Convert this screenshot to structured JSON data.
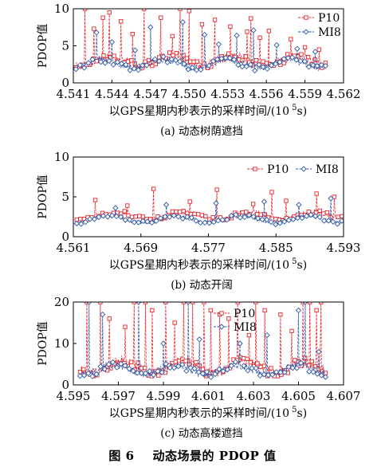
{
  "figure_caption": "图 6    动态场景的 PDOP 值",
  "colors": {
    "P10": "#e8232a",
    "MI8": "#2f5aa8",
    "axis": "#000000"
  },
  "chart_data": [
    {
      "type": "line",
      "subplot_label": "(a) 动态树荫遮挡",
      "xlabel_main": "以GPS星期内秒表示的采样时间/(10",
      "xlabel_exp": "5",
      "xlabel_tail": "s)",
      "ylabel": "PDOP值",
      "xlim": [
        4.541,
        4.562
      ],
      "ylim": [
        0,
        10
      ],
      "xticks": [
        "4.541",
        "4.544",
        "4.547",
        "4.550",
        "4.553",
        "4.556",
        "4.559",
        "4.562"
      ],
      "xtick_values": [
        4.541,
        4.544,
        4.547,
        4.55,
        4.553,
        4.556,
        4.559,
        4.562
      ],
      "yticks": [
        "0",
        "5",
        "10"
      ],
      "ytick_values": [
        0,
        5,
        10
      ],
      "legend_position": "top-right",
      "series": [
        {
          "name": "P10",
          "x_range": [
            4.5412,
            4.5606
          ],
          "baseline": [
            2.2,
            3.4
          ],
          "noise": 1.2,
          "spikes": [
            [
              4.5419,
              10.0
            ],
            [
              4.5426,
              7.3
            ],
            [
              4.5433,
              8.8
            ],
            [
              4.5438,
              9.5
            ],
            [
              4.5447,
              8.3
            ],
            [
              4.5456,
              6.6
            ],
            [
              4.5465,
              10.0
            ],
            [
              4.5478,
              8.8
            ],
            [
              4.5487,
              6.3
            ],
            [
              4.5493,
              10.0
            ],
            [
              4.55,
              9.7
            ],
            [
              4.551,
              7.9
            ],
            [
              4.552,
              8.5
            ],
            [
              4.5532,
              7.6
            ],
            [
              4.5545,
              6.9
            ],
            [
              4.5548,
              8.7
            ],
            [
              4.5555,
              6.1
            ],
            [
              4.5562,
              7.0
            ],
            [
              4.5579,
              5.9
            ],
            [
              4.559,
              4.8
            ],
            [
              4.5601,
              4.5
            ]
          ]
        },
        {
          "name": "MI8",
          "x_range": [
            4.5412,
            4.5606
          ],
          "baseline": [
            1.9,
            3.0
          ],
          "noise": 0.9,
          "spikes": [
            [
              4.5428,
              6.8
            ],
            [
              4.544,
              5.5
            ],
            [
              4.5458,
              4.4
            ],
            [
              4.547,
              7.5
            ],
            [
              4.5495,
              8.2
            ],
            [
              4.5512,
              6.5
            ],
            [
              4.5523,
              5.2
            ],
            [
              4.5537,
              6.4
            ],
            [
              4.555,
              7.1
            ],
            [
              4.5568,
              5.1
            ],
            [
              4.5584,
              4.6
            ],
            [
              4.5598,
              4.2
            ]
          ]
        }
      ]
    },
    {
      "type": "line",
      "subplot_label": "(b) 动态开阔",
      "xlabel_main": "以GPS星期内秒表示的采样时间/(10",
      "xlabel_exp": "5",
      "xlabel_tail": "s)",
      "ylabel": "PDOP值",
      "xlim": [
        4.561,
        4.593
      ],
      "ylim": [
        0,
        10
      ],
      "xticks": [
        "4.561",
        "4.569",
        "4.577",
        "4.585",
        "4.593"
      ],
      "xtick_values": [
        4.561,
        4.569,
        4.577,
        4.585,
        4.593
      ],
      "yticks": [
        "0",
        "5",
        "10"
      ],
      "ytick_values": [
        0,
        5,
        10
      ],
      "legend_position": "top-right",
      "series": [
        {
          "name": "P10",
          "x_range": [
            4.5614,
            4.5928
          ],
          "baseline": [
            2.1,
            3.0
          ],
          "noise": 0.6,
          "spikes": [
            [
              4.5636,
              4.6
            ],
            [
              4.5674,
              3.9
            ],
            [
              4.5705,
              6.0
            ],
            [
              4.5748,
              4.4
            ],
            [
              4.578,
              5.9
            ],
            [
              4.5823,
              4.1
            ],
            [
              4.5845,
              5.6
            ],
            [
              4.5862,
              4.5
            ],
            [
              4.5898,
              5.4
            ],
            [
              4.5919,
              5.0
            ]
          ]
        },
        {
          "name": "MI8",
          "x_range": [
            4.5614,
            4.5928
          ],
          "baseline": [
            1.7,
            2.5
          ],
          "noise": 0.5,
          "spikes": [
            [
              4.566,
              3.6
            ],
            [
              4.572,
              4.0
            ],
            [
              4.5779,
              4.2
            ],
            [
              4.5836,
              4.4
            ],
            [
              4.5877,
              4.0
            ],
            [
              4.5915,
              4.8
            ]
          ]
        }
      ]
    },
    {
      "type": "line",
      "subplot_label": "(c) 动态高楼遮挡",
      "xlabel_main": "以GPS星期内秒表示的采样时间/(10",
      "xlabel_exp": "5",
      "xlabel_tail": "s)",
      "ylabel": "PDOP值",
      "xlim": [
        4.595,
        4.607
      ],
      "ylim": [
        0,
        20
      ],
      "xticks": [
        "4.595",
        "4.597",
        "4.599",
        "4.601",
        "4.603",
        "4.605",
        "4.607"
      ],
      "xtick_values": [
        4.595,
        4.597,
        4.599,
        4.601,
        4.603,
        4.605,
        4.607
      ],
      "yticks": [
        "0",
        "10",
        "20"
      ],
      "ytick_values": [
        0,
        10,
        20
      ],
      "legend_position": "top-right",
      "series": [
        {
          "name": "P10",
          "x_range": [
            4.5953,
            4.6062
          ],
          "baseline": [
            2.5,
            5.5
          ],
          "noise": 2.5,
          "spikes": [
            [
              4.5956,
              20
            ],
            [
              4.5962,
              20
            ],
            [
              4.5966,
              16
            ],
            [
              4.5973,
              14
            ],
            [
              4.5977,
              20
            ],
            [
              4.5982,
              20
            ],
            [
              4.5985,
              18
            ],
            [
              4.5991,
              20
            ],
            [
              4.5995,
              15
            ],
            [
              4.5999,
              20
            ],
            [
              4.6003,
              20
            ],
            [
              4.6008,
              20
            ],
            [
              4.6011,
              18
            ],
            [
              4.6015,
              17
            ],
            [
              4.6019,
              16
            ],
            [
              4.6023,
              20
            ],
            [
              4.6028,
              12
            ],
            [
              4.6031,
              20
            ],
            [
              4.6035,
              18
            ],
            [
              4.6042,
              17
            ],
            [
              4.6047,
              13
            ],
            [
              4.6052,
              20
            ],
            [
              4.6055,
              20
            ],
            [
              4.6058,
              18
            ],
            [
              4.606,
              20
            ]
          ]
        },
        {
          "name": "MI8",
          "x_range": [
            4.5953,
            4.6062
          ],
          "baseline": [
            2.2,
            4.5
          ],
          "noise": 1.8,
          "spikes": [
            [
              4.5957,
              20
            ],
            [
              4.5963,
              17
            ],
            [
              4.5979,
              20
            ],
            [
              4.599,
              10
            ],
            [
              4.6001,
              20
            ],
            [
              4.6006,
              11
            ],
            [
              4.6024,
              10
            ],
            [
              4.6036,
              12
            ],
            [
              4.605,
              18
            ],
            [
              4.6053,
              20
            ],
            [
              4.6059,
              8
            ]
          ]
        }
      ]
    }
  ]
}
